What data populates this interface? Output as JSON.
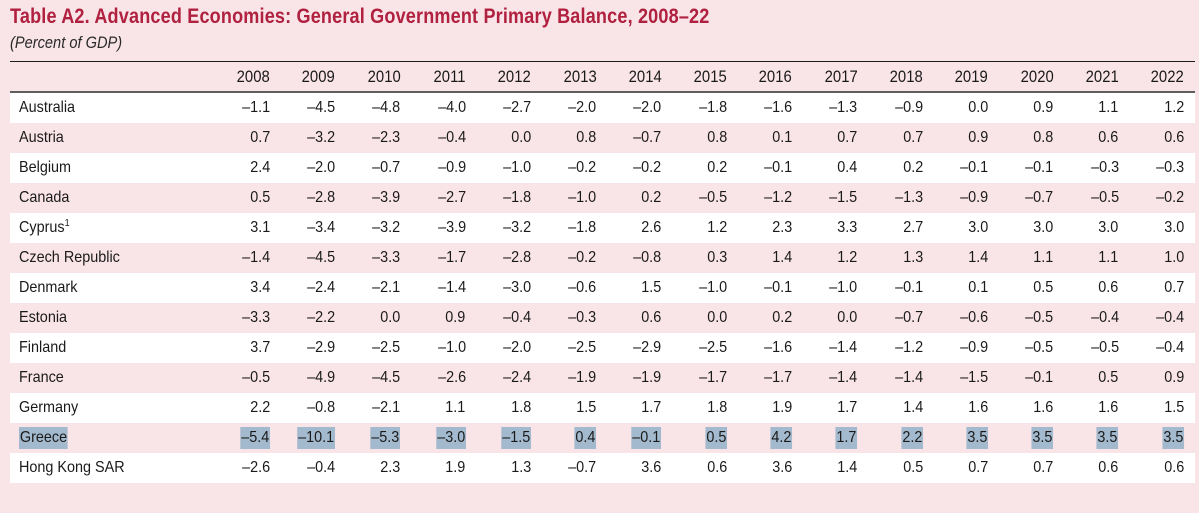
{
  "header": {
    "title": "Table A2. Advanced Economies: General Government Primary Balance, 2008–22",
    "subtitle": "(Percent of GDP)"
  },
  "colors": {
    "title": "#b0213f",
    "page_background": "#f9e4e8",
    "alt_row": "#ffffff",
    "highlight": "#a3b9cd"
  },
  "table": {
    "years": [
      "2008",
      "2009",
      "2010",
      "2011",
      "2012",
      "2013",
      "2014",
      "2015",
      "2016",
      "2017",
      "2018",
      "2019",
      "2020",
      "2021",
      "2022"
    ],
    "rows": [
      {
        "label": "Australia",
        "footnote": "",
        "highlighted": false,
        "values": [
          "–1.1",
          "–4.5",
          "–4.8",
          "–4.0",
          "–2.7",
          "–2.0",
          "–2.0",
          "–1.8",
          "–1.6",
          "–1.3",
          "–0.9",
          "0.0",
          "0.9",
          "1.1",
          "1.2"
        ]
      },
      {
        "label": "Austria",
        "footnote": "",
        "highlighted": false,
        "values": [
          "0.7",
          "–3.2",
          "–2.3",
          "–0.4",
          "0.0",
          "0.8",
          "–0.7",
          "0.8",
          "0.1",
          "0.7",
          "0.7",
          "0.9",
          "0.8",
          "0.6",
          "0.6"
        ]
      },
      {
        "label": "Belgium",
        "footnote": "",
        "highlighted": false,
        "values": [
          "2.4",
          "–2.0",
          "–0.7",
          "–0.9",
          "–1.0",
          "–0.2",
          "–0.2",
          "0.2",
          "–0.1",
          "0.4",
          "0.2",
          "–0.1",
          "–0.1",
          "–0.3",
          "–0.3"
        ]
      },
      {
        "label": "Canada",
        "footnote": "",
        "highlighted": false,
        "values": [
          "0.5",
          "–2.8",
          "–3.9",
          "–2.7",
          "–1.8",
          "–1.0",
          "0.2",
          "–0.5",
          "–1.2",
          "–1.5",
          "–1.3",
          "–0.9",
          "–0.7",
          "–0.5",
          "–0.2"
        ]
      },
      {
        "label": "Cyprus",
        "footnote": "1",
        "highlighted": false,
        "values": [
          "3.1",
          "–3.4",
          "–3.2",
          "–3.9",
          "–3.2",
          "–1.8",
          "2.6",
          "1.2",
          "2.3",
          "3.3",
          "2.7",
          "3.0",
          "3.0",
          "3.0",
          "3.0"
        ]
      },
      {
        "label": "Czech Republic",
        "footnote": "",
        "highlighted": false,
        "values": [
          "–1.4",
          "–4.5",
          "–3.3",
          "–1.7",
          "–2.8",
          "–0.2",
          "–0.8",
          "0.3",
          "1.4",
          "1.2",
          "1.3",
          "1.4",
          "1.1",
          "1.1",
          "1.0"
        ]
      },
      {
        "label": "Denmark",
        "footnote": "",
        "highlighted": false,
        "values": [
          "3.4",
          "–2.4",
          "–2.1",
          "–1.4",
          "–3.0",
          "–0.6",
          "1.5",
          "–1.0",
          "–0.1",
          "–1.0",
          "–0.1",
          "0.1",
          "0.5",
          "0.6",
          "0.7"
        ]
      },
      {
        "label": "Estonia",
        "footnote": "",
        "highlighted": false,
        "values": [
          "–3.3",
          "–2.2",
          "0.0",
          "0.9",
          "–0.4",
          "–0.3",
          "0.6",
          "0.0",
          "0.2",
          "0.0",
          "–0.7",
          "–0.6",
          "–0.5",
          "–0.4",
          "–0.4"
        ]
      },
      {
        "label": "Finland",
        "footnote": "",
        "highlighted": false,
        "values": [
          "3.7",
          "–2.9",
          "–2.5",
          "–1.0",
          "–2.0",
          "–2.5",
          "–2.9",
          "–2.5",
          "–1.6",
          "–1.4",
          "–1.2",
          "–0.9",
          "–0.5",
          "–0.5",
          "–0.4"
        ]
      },
      {
        "label": "France",
        "footnote": "",
        "highlighted": false,
        "values": [
          "–0.5",
          "–4.9",
          "–4.5",
          "–2.6",
          "–2.4",
          "–1.9",
          "–1.9",
          "–1.7",
          "–1.7",
          "–1.4",
          "–1.4",
          "–1.5",
          "–0.1",
          "0.5",
          "0.9"
        ]
      },
      {
        "label": "Germany",
        "footnote": "",
        "highlighted": false,
        "values": [
          "2.2",
          "–0.8",
          "–2.1",
          "1.1",
          "1.8",
          "1.5",
          "1.7",
          "1.8",
          "1.9",
          "1.7",
          "1.4",
          "1.6",
          "1.6",
          "1.6",
          "1.5"
        ]
      },
      {
        "label": "Greece",
        "footnote": "",
        "highlighted": true,
        "values": [
          "–5.4",
          "–10.1",
          "–5.3",
          "–3.0",
          "–1.5",
          "0.4",
          "–0.1",
          "0.5",
          "4.2",
          "1.7",
          "2.2",
          "3.5",
          "3.5",
          "3.5",
          "3.5"
        ]
      },
      {
        "label": "Hong Kong SAR",
        "footnote": "",
        "highlighted": false,
        "values": [
          "–2.6",
          "–0.4",
          "2.3",
          "1.9",
          "1.3",
          "–0.7",
          "3.6",
          "0.6",
          "3.6",
          "1.4",
          "0.5",
          "0.7",
          "0.7",
          "0.6",
          "0.6"
        ]
      }
    ]
  }
}
